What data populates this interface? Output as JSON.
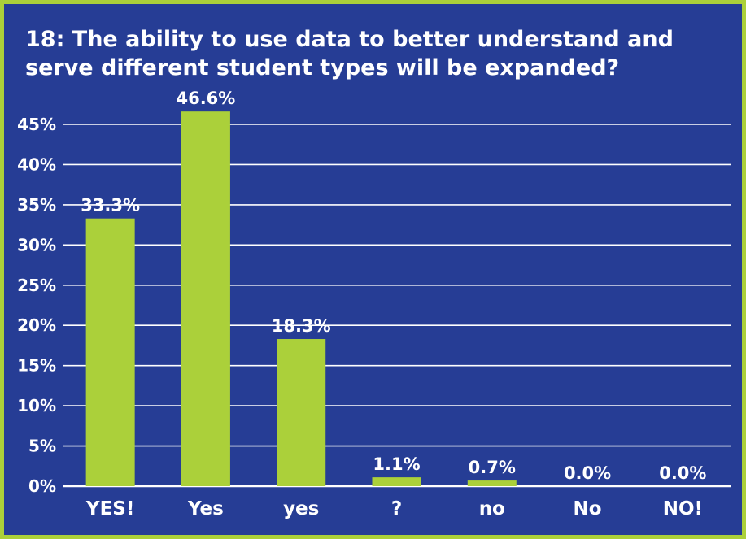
{
  "chart_data": {
    "type": "bar",
    "title": "18: The ability to use data to better understand and serve different student types will be expanded?",
    "categories": [
      "YES!",
      "Yes",
      "yes",
      "?",
      "no",
      "No",
      "NO!"
    ],
    "values": [
      33.3,
      46.6,
      18.3,
      1.1,
      0.7,
      0.0,
      0.0
    ],
    "data_labels": [
      "33.3%",
      "46.6%",
      "18.3%",
      "1.1%",
      "0.7%",
      "0.0%",
      "0.0%"
    ],
    "yticks": [
      "0%",
      "5%",
      "10%",
      "15%",
      "20%",
      "25%",
      "30%",
      "35%",
      "40%",
      "45%"
    ],
    "ylim": [
      0,
      45
    ],
    "grid": true,
    "colors": {
      "background": "#263d95",
      "border": "#abd03a",
      "bar": "#abd03a",
      "text": "#ffffff",
      "grid": "#ffffff"
    }
  }
}
